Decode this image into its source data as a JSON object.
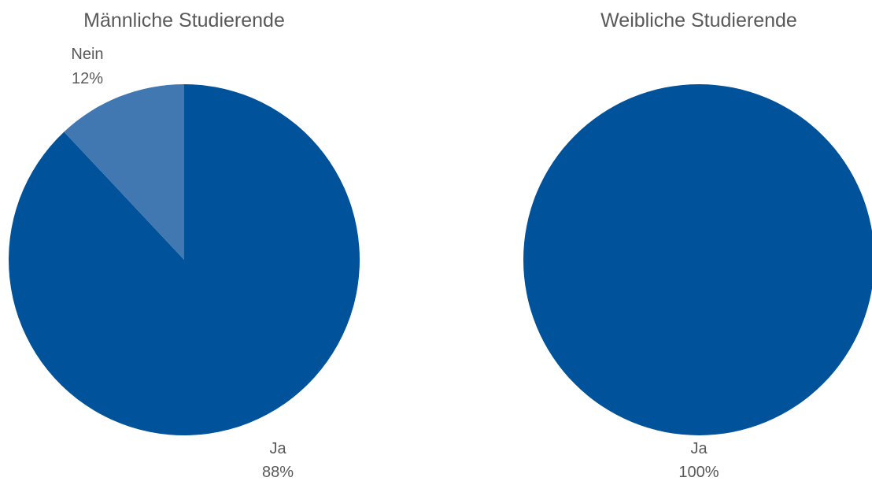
{
  "chart_data": [
    {
      "type": "pie",
      "title": "Männliche Studierende",
      "slices": [
        {
          "label": "Ja",
          "value": 88,
          "value_label": "88%",
          "color": "#00529b"
        },
        {
          "label": "Nein",
          "value": 12,
          "value_label": "12%",
          "color": "#4178b1"
        }
      ]
    },
    {
      "type": "pie",
      "title": "Weibliche Studierende",
      "slices": [
        {
          "label": "Ja",
          "value": 100,
          "value_label": "100%",
          "color": "#00529b"
        }
      ]
    }
  ]
}
